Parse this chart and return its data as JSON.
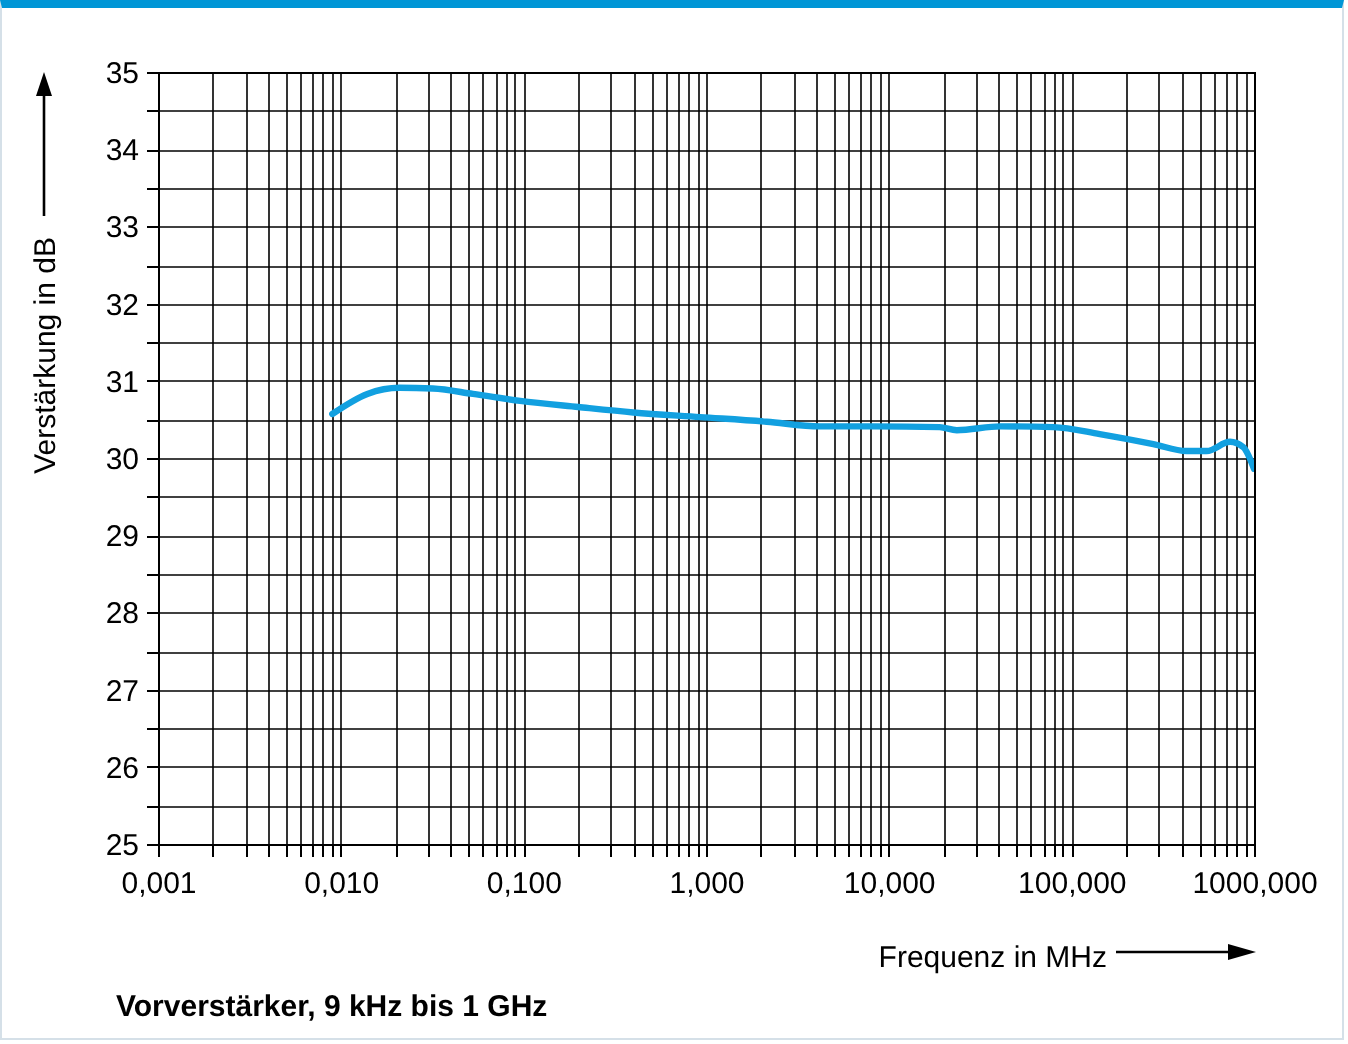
{
  "chart_data": {
    "type": "line",
    "title": "Vorverstärker, 9 kHz bis 1 GHz",
    "xlabel": "Frequenz in MHz",
    "ylabel": "Verstärkung in dB",
    "log": "x",
    "grid": true,
    "marker": "none",
    "line_style": "solid",
    "xlim": [
      0.001,
      1000
    ],
    "ylim": [
      25,
      35
    ],
    "xticks": [
      {
        "value": 0.001,
        "label": "0,001"
      },
      {
        "value": 0.002,
        "label": null
      },
      {
        "value": 0.003,
        "label": null
      },
      {
        "value": 0.004,
        "label": null
      },
      {
        "value": 0.005,
        "label": null
      },
      {
        "value": 0.006,
        "label": null
      },
      {
        "value": 0.007,
        "label": null
      },
      {
        "value": 0.008,
        "label": null
      },
      {
        "value": 0.009,
        "label": null
      },
      {
        "value": 0.01,
        "label": "0,010"
      },
      {
        "value": 0.02,
        "label": null
      },
      {
        "value": 0.03,
        "label": null
      },
      {
        "value": 0.04,
        "label": null
      },
      {
        "value": 0.05,
        "label": null
      },
      {
        "value": 0.06,
        "label": null
      },
      {
        "value": 0.07,
        "label": null
      },
      {
        "value": 0.08,
        "label": null
      },
      {
        "value": 0.09,
        "label": null
      },
      {
        "value": 0.1,
        "label": "0,100"
      },
      {
        "value": 0.2,
        "label": null
      },
      {
        "value": 0.3,
        "label": null
      },
      {
        "value": 0.4,
        "label": null
      },
      {
        "value": 0.5,
        "label": null
      },
      {
        "value": 0.6,
        "label": null
      },
      {
        "value": 0.7,
        "label": null
      },
      {
        "value": 0.8,
        "label": null
      },
      {
        "value": 0.9,
        "label": null
      },
      {
        "value": 1,
        "label": "1,000"
      },
      {
        "value": 2,
        "label": null
      },
      {
        "value": 3,
        "label": null
      },
      {
        "value": 4,
        "label": null
      },
      {
        "value": 5,
        "label": null
      },
      {
        "value": 6,
        "label": null
      },
      {
        "value": 7,
        "label": null
      },
      {
        "value": 8,
        "label": null
      },
      {
        "value": 9,
        "label": null
      },
      {
        "value": 10,
        "label": "10,000"
      },
      {
        "value": 20,
        "label": null
      },
      {
        "value": 30,
        "label": null
      },
      {
        "value": 40,
        "label": null
      },
      {
        "value": 50,
        "label": null
      },
      {
        "value": 60,
        "label": null
      },
      {
        "value": 70,
        "label": null
      },
      {
        "value": 80,
        "label": null
      },
      {
        "value": 90,
        "label": null
      },
      {
        "value": 100,
        "label": "100,000"
      },
      {
        "value": 200,
        "label": null
      },
      {
        "value": 300,
        "label": null
      },
      {
        "value": 400,
        "label": null
      },
      {
        "value": 500,
        "label": null
      },
      {
        "value": 600,
        "label": null
      },
      {
        "value": 700,
        "label": null
      },
      {
        "value": 800,
        "label": null
      },
      {
        "value": 900,
        "label": null
      },
      {
        "value": 1000,
        "label": "1000,000"
      }
    ],
    "yticks": [
      25,
      {
        "value": 25.5,
        "label": null
      },
      26,
      {
        "value": 26.5,
        "label": null
      },
      27,
      {
        "value": 27.5,
        "label": null
      },
      28,
      {
        "value": 28.5,
        "label": null
      },
      29,
      {
        "value": 29.5,
        "label": null
      },
      30,
      {
        "value": 30.5,
        "label": null
      },
      31,
      {
        "value": 31.5,
        "label": null
      },
      32,
      {
        "value": 32.5,
        "label": null
      },
      33,
      {
        "value": 33.5,
        "label": null
      },
      34,
      {
        "value": 34.5,
        "label": null
      },
      35
    ],
    "series": [
      {
        "color": "#12a0e0",
        "x": [
          0.009,
          0.014,
          0.021,
          0.032,
          0.053,
          0.096,
          0.2,
          0.4,
          0.93,
          2.15,
          4.2,
          8.2,
          19,
          23.6,
          41,
          80,
          143,
          281,
          428,
          551,
          739,
          875,
          1000
        ],
        "values": [
          30.57,
          30.83,
          30.91,
          30.9,
          30.83,
          30.74,
          30.66,
          30.59,
          30.53,
          30.47,
          30.41,
          30.41,
          30.4,
          30.36,
          30.41,
          30.4,
          30.31,
          30.18,
          30.09,
          30.09,
          30.21,
          30.14,
          29.86
        ]
      }
    ]
  }
}
